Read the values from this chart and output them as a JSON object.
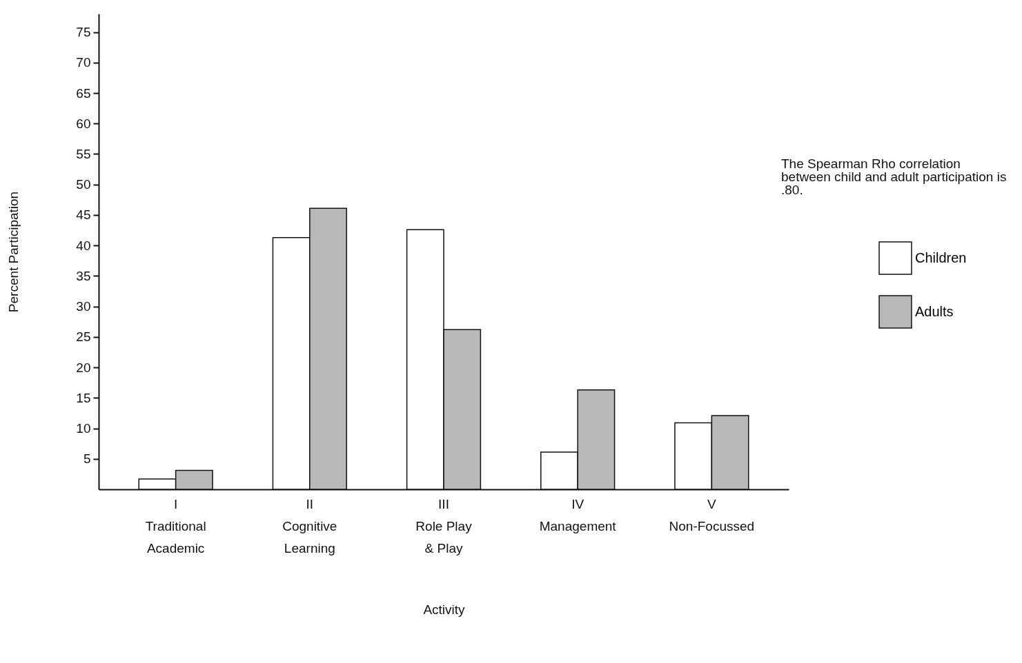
{
  "chart_data": {
    "type": "bar",
    "xlabel": "Activity",
    "ylabel": "Percent Participation",
    "categories": [
      "I\nTraditional\nAcademic",
      "II\nCognitive\nLearning",
      "III\nRole Play\n& Play",
      "IV\nManagement",
      "V\nNon-Focussed"
    ],
    "series": [
      {
        "name": "Children",
        "color": "#ffffff",
        "values": [
          1.7,
          41.3,
          42.6,
          6.1,
          10.9
        ]
      },
      {
        "name": "Adults",
        "color": "#b8b8b8",
        "values": [
          3.1,
          46.1,
          26.2,
          16.3,
          12.1
        ]
      }
    ],
    "ylim": [
      0,
      78
    ],
    "yticks": [
      5,
      10,
      15,
      20,
      25,
      30,
      35,
      40,
      45,
      50,
      55,
      60,
      65,
      70,
      75
    ],
    "grid": false,
    "legend": "right",
    "annotations": [
      "The Spearman Rho correlation between child and adult participation is .80."
    ]
  }
}
